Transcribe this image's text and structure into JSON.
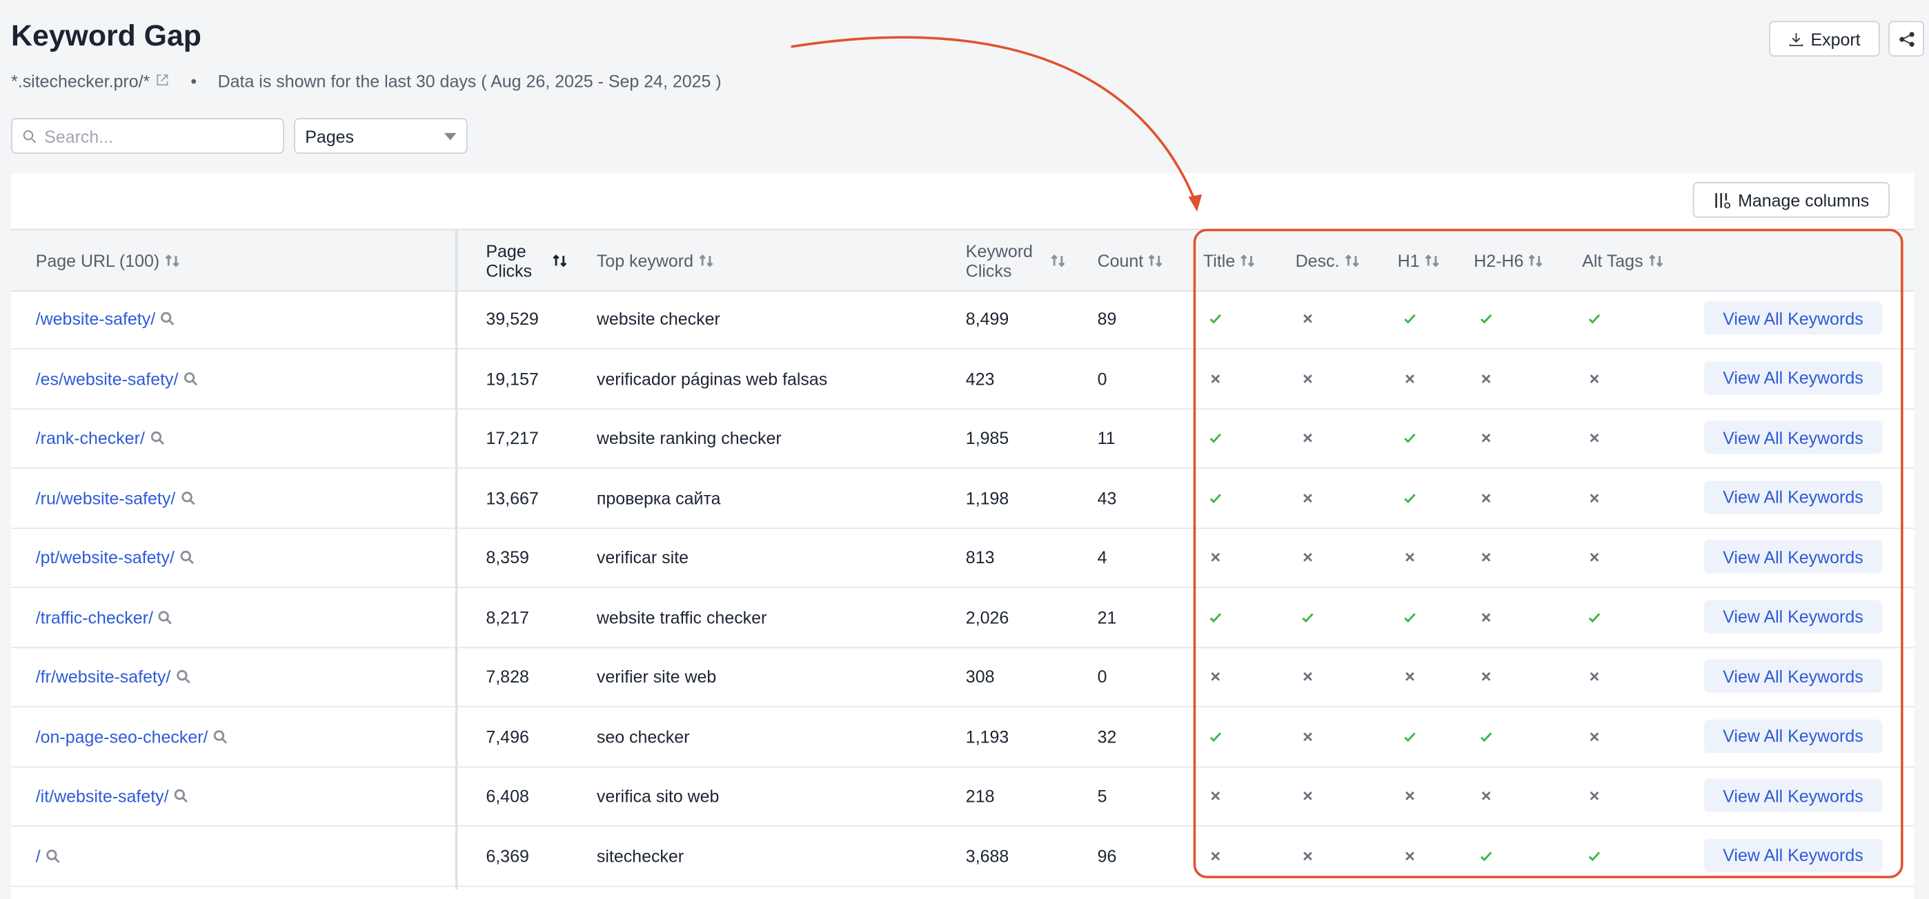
{
  "header": {
    "title": "Keyword Gap",
    "site": "*.sitechecker.pro/*",
    "date_range": "Data is shown for the last 30 days ( Aug 26, 2025 - Sep 24, 2025 )",
    "export": "Export"
  },
  "filters": {
    "search_placeholder": "Search...",
    "dropdown": "Pages"
  },
  "toolbar": {
    "manage_columns": "Manage columns"
  },
  "table": {
    "columns": [
      "Page URL (100)",
      "Page Clicks",
      "Top keyword",
      "Keyword Clicks",
      "Count",
      "Title",
      "Desc.",
      "H1",
      "H2-H6",
      "Alt Tags"
    ],
    "row_action": "View All Keywords",
    "rows": [
      [
        "/website-safety/",
        "39,529",
        "website checker",
        "8,499",
        "89",
        true,
        false,
        true,
        true,
        true
      ],
      [
        "/es/website-safety/",
        "19,157",
        "verificador páginas web falsas",
        "423",
        "0",
        false,
        false,
        false,
        false,
        false
      ],
      [
        "/rank-checker/",
        "17,217",
        "website ranking checker",
        "1,985",
        "11",
        true,
        false,
        true,
        false,
        false
      ],
      [
        "/ru/website-safety/",
        "13,667",
        "проверка сайта",
        "1,198",
        "43",
        true,
        false,
        true,
        false,
        false
      ],
      [
        "/pt/website-safety/",
        "8,359",
        "verificar site",
        "813",
        "4",
        false,
        false,
        false,
        false,
        false
      ],
      [
        "/traffic-checker/",
        "8,217",
        "website traffic checker",
        "2,026",
        "21",
        true,
        true,
        true,
        false,
        true
      ],
      [
        "/fr/website-safety/",
        "7,828",
        "verifier site web",
        "308",
        "0",
        false,
        false,
        false,
        false,
        false
      ],
      [
        "/on-page-seo-checker/",
        "7,496",
        "seo checker",
        "1,193",
        "32",
        true,
        false,
        true,
        true,
        false
      ],
      [
        "/it/website-safety/",
        "6,408",
        "verifica sito web",
        "218",
        "5",
        false,
        false,
        false,
        false,
        false
      ],
      [
        "/",
        "6,369",
        "sitechecker",
        "3,688",
        "96",
        false,
        false,
        false,
        true,
        true
      ]
    ]
  }
}
